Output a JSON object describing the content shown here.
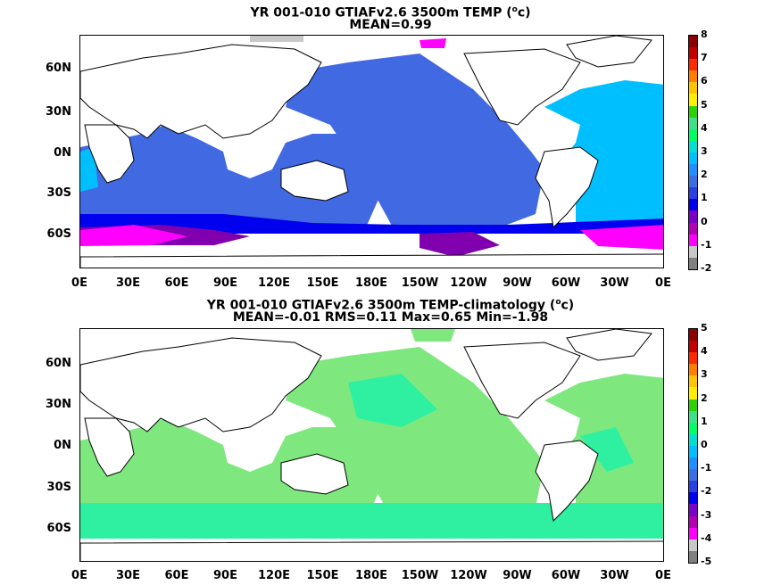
{
  "panels": [
    {
      "title_line1_pre": "YR 001-010 GTIAFv2.6 3500m TEMP (",
      "title_sup": "o",
      "title_line1_post": "c)",
      "title_line2": "MEAN=0.99",
      "colorbar": {
        "labels": [
          "8",
          "7",
          "6",
          "5",
          "4",
          "3",
          "2",
          "1",
          "0",
          "-1",
          "-2"
        ],
        "colors": [
          "#8b0000",
          "#c20000",
          "#ff2a00",
          "#ff7e00",
          "#ffc400",
          "#ffee00",
          "#2bd400",
          "#3fe08a",
          "#00ff66",
          "#00e0d0",
          "#00bfff",
          "#1e90ff",
          "#3a6fe0",
          "#2c3fe0",
          "#0000ee",
          "#7b00c8",
          "#b400b4",
          "#ff00ff",
          "#c8c8c8",
          "#808080"
        ]
      }
    },
    {
      "title_line1_pre": "YR 001-010 GTIAFv2.6 3500m TEMP-climatology (",
      "title_sup": "o",
      "title_line1_post": "c)",
      "title_line2": "MEAN=-0.01   RMS=0.11   Max=0.65   Min=-1.98",
      "colorbar": {
        "labels": [
          "5",
          "4",
          "3",
          "2",
          "1",
          "0",
          "-1",
          "-2",
          "-3",
          "-4",
          "-5"
        ],
        "colors": [
          "#8b0000",
          "#c20000",
          "#ff2a00",
          "#ff7e00",
          "#ffc400",
          "#ffee00",
          "#2bd400",
          "#3fe08a",
          "#00ff66",
          "#00e0d0",
          "#00bfff",
          "#1e90ff",
          "#3a6fe0",
          "#2c3fe0",
          "#0000ee",
          "#7b00c8",
          "#b400b4",
          "#ff00ff",
          "#c8c8c8",
          "#808080"
        ]
      }
    }
  ],
  "axes": {
    "lat_labels": [
      "60N",
      "30N",
      "0N",
      "30S",
      "60S"
    ],
    "lon_labels": [
      "0E",
      "30E",
      "60E",
      "90E",
      "120E",
      "150E",
      "180E",
      "150W",
      "120W",
      "90W",
      "60W",
      "30W",
      "0E"
    ]
  },
  "colors": {
    "deep_blue": "#4169e1",
    "light_blue": "#00bfff",
    "navy": "#0000ee",
    "purple": "#8000b0",
    "magenta": "#ff00ff",
    "green": "#7ee87e",
    "aqua_green": "#2ef0a0",
    "land": "#ffffff"
  }
}
